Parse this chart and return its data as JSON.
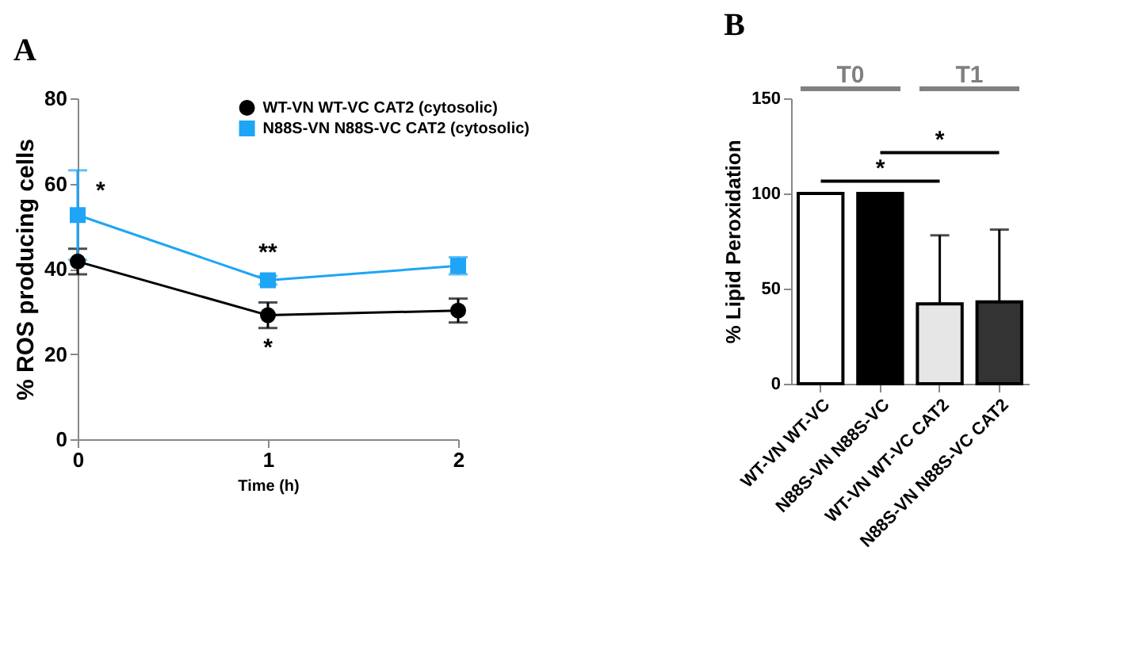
{
  "chart_data": [
    {
      "type": "line",
      "title": "A",
      "xlabel": "Time (h)",
      "ylabel": "% ROS producing cells",
      "x": [
        0,
        1,
        2
      ],
      "xlim": [
        0,
        2
      ],
      "xticks": [
        0,
        1,
        2
      ],
      "ylim": [
        0,
        80
      ],
      "yticks": [
        0,
        20,
        40,
        60,
        80
      ],
      "legend": "top right",
      "line_style": "solid",
      "series": [
        {
          "name": "WT-VN WT-VC CAT2 (cytosolic)",
          "color": "#000000",
          "marker": "circle",
          "values": [
            41.7,
            29.1,
            30.2
          ],
          "errors": [
            3,
            3,
            2.8
          ]
        },
        {
          "name": "N88S-VN N88S-VC CAT2 (cytosolic)",
          "color": "#1ea5f5",
          "marker": "square",
          "values": [
            52.6,
            37.3,
            40.7
          ],
          "errors": [
            10.5,
            1,
            2
          ]
        }
      ],
      "annotations": [
        "*",
        "**",
        "*"
      ]
    },
    {
      "type": "bar",
      "title": "B",
      "ylabel": "% Lipid Peroxidation",
      "categories": [
        "WT-VN WT-VC",
        "N88S-VN N88S-VC",
        "WT-VN WT-VC CAT2",
        "N88S-VN N88S-VC CAT2"
      ],
      "values": [
        100,
        100,
        42,
        43
      ],
      "colors": [
        "#ffffff",
        "#000000",
        "#e6e6e6",
        "#333333"
      ],
      "errors": [
        null,
        null,
        [
          42,
          78
        ],
        [
          43,
          81
        ]
      ],
      "ylim": [
        0,
        150
      ],
      "yticks": [
        0,
        50,
        100,
        150
      ],
      "annotations": [
        "T0",
        "T1",
        "*",
        "*"
      ]
    }
  ]
}
